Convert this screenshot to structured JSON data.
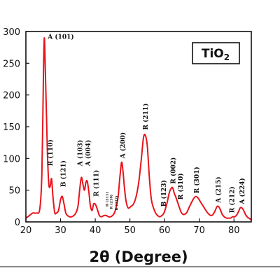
{
  "chart_data": {
    "type": "line",
    "xlabel_prefix": "2",
    "xlabel_theta": "θ",
    "xlabel_rest": " (Degree)",
    "ylabel": "",
    "xlim": [
      20,
      85
    ],
    "ylim": [
      0,
      300
    ],
    "x_ticks": [
      20,
      30,
      40,
      50,
      60,
      70,
      80
    ],
    "y_ticks": [
      0,
      50,
      100,
      150,
      200,
      250,
      300
    ],
    "legend": {
      "main": "TiO",
      "sub": "2",
      "placement": "top-right"
    },
    "line_color": "#e8141c",
    "series": [
      {
        "x": [
          20,
          21,
          22,
          23,
          24,
          24.6,
          25.0,
          25.3,
          25.7,
          26.2,
          26.6,
          27.0,
          27.4,
          27.8,
          28.3,
          28.8,
          29.4,
          30.0,
          30.5,
          31.0,
          31.5,
          32.0,
          32.6,
          33.2,
          33.8,
          34.4,
          35.0,
          35.5,
          36.0,
          36.5,
          36.9,
          37.3,
          37.7,
          38.2,
          38.6,
          39.1,
          39.5,
          40.0,
          40.6,
          41.2,
          41.8,
          42.5,
          43.2,
          43.8,
          44.4,
          45.0,
          45.6,
          46.1,
          46.6,
          47.1,
          47.6,
          48.0,
          48.4,
          48.9,
          49.5,
          50.2,
          51.0,
          51.8,
          52.6,
          53.3,
          53.9,
          54.4,
          55.0,
          55.6,
          56.2,
          56.8,
          57.4,
          58.0,
          58.6,
          59.2,
          59.8,
          60.3,
          60.8,
          61.3,
          61.8,
          62.3,
          62.8,
          63.3,
          63.8,
          64.3,
          64.8,
          65.3,
          65.8,
          66.4,
          67.0,
          67.7,
          68.4,
          69.0,
          69.6,
          70.3,
          71.0,
          71.8,
          72.6,
          73.4,
          74.0,
          74.6,
          75.1,
          75.6,
          76.1,
          76.6,
          77.2,
          77.8,
          78.4,
          79.0,
          79.6,
          80.2,
          80.8,
          81.3,
          81.8,
          82.3,
          82.8,
          83.3,
          83.8,
          84.3,
          85.0
        ],
        "y": [
          6,
          10,
          14,
          14,
          20,
          75,
          210,
          290,
          220,
          110,
          60,
          56,
          68,
          40,
          15,
          14,
          18,
          35,
          40,
          28,
          14,
          10,
          8,
          8,
          10,
          14,
          24,
          50,
          70,
          58,
          50,
          62,
          64,
          45,
          25,
          18,
          28,
          28,
          20,
          10,
          8,
          10,
          10,
          8,
          8,
          10,
          15,
          25,
          40,
          70,
          94,
          80,
          55,
          32,
          22,
          24,
          28,
          40,
          65,
          100,
          132,
          137,
          120,
          70,
          35,
          22,
          14,
          10,
          8,
          10,
          14,
          22,
          32,
          45,
          52,
          54,
          45,
          38,
          30,
          22,
          15,
          12,
          12,
          15,
          22,
          30,
          37,
          40,
          38,
          32,
          26,
          19,
          13,
          10,
          12,
          18,
          24,
          24,
          19,
          12,
          8,
          6,
          6,
          6,
          8,
          8,
          11,
          16,
          22,
          22,
          18,
          12,
          8,
          6,
          3
        ]
      }
    ],
    "annotations": [
      {
        "text": "A (101)",
        "x": 26.3,
        "y": 291,
        "rotate": 0,
        "size": 9
      },
      {
        "text": "R (110)",
        "x": 27.2,
        "y": 88,
        "rotate": -90,
        "size": 9
      },
      {
        "text": "B (121)",
        "x": 30.9,
        "y": 55,
        "rotate": -90,
        "size": 9
      },
      {
        "text": "A (103)",
        "x": 35.7,
        "y": 88,
        "rotate": -90,
        "size": 9
      },
      {
        "text": "A (004)",
        "x": 38.1,
        "y": 88,
        "rotate": -90,
        "size": 9
      },
      {
        "text": "R (111)",
        "x": 40.4,
        "y": 40,
        "rotate": -90,
        "size": 9
      },
      {
        "text": "B (211)",
        "x": 43.4,
        "y": 24,
        "rotate": -90,
        "size": 5
      },
      {
        "text": "R (210)",
        "x": 44.6,
        "y": 20,
        "rotate": -90,
        "size": 5
      },
      {
        "text": "B (032)",
        "x": 46.1,
        "y": 18,
        "rotate": -90,
        "size": 5
      },
      {
        "text": "A (200)",
        "x": 48.1,
        "y": 100,
        "rotate": -90,
        "size": 9
      },
      {
        "text": "R (211)",
        "x": 54.6,
        "y": 145,
        "rotate": -90,
        "size": 9
      },
      {
        "text": "B (123)",
        "x": 59.9,
        "y": 24,
        "rotate": -90,
        "size": 9
      },
      {
        "text": "R (002)",
        "x": 62.6,
        "y": 60,
        "rotate": -90,
        "size": 9
      },
      {
        "text": "R (310)",
        "x": 64.7,
        "y": 35,
        "rotate": -90,
        "size": 9
      },
      {
        "text": "R (301)",
        "x": 69.4,
        "y": 45,
        "rotate": -90,
        "size": 9
      },
      {
        "text": "A (215)",
        "x": 75.6,
        "y": 30,
        "rotate": -90,
        "size": 9
      },
      {
        "text": "R (212)",
        "x": 79.6,
        "y": 14,
        "rotate": -90,
        "size": 9
      },
      {
        "text": "A (224)",
        "x": 82.5,
        "y": 28,
        "rotate": -90,
        "size": 9
      }
    ]
  }
}
